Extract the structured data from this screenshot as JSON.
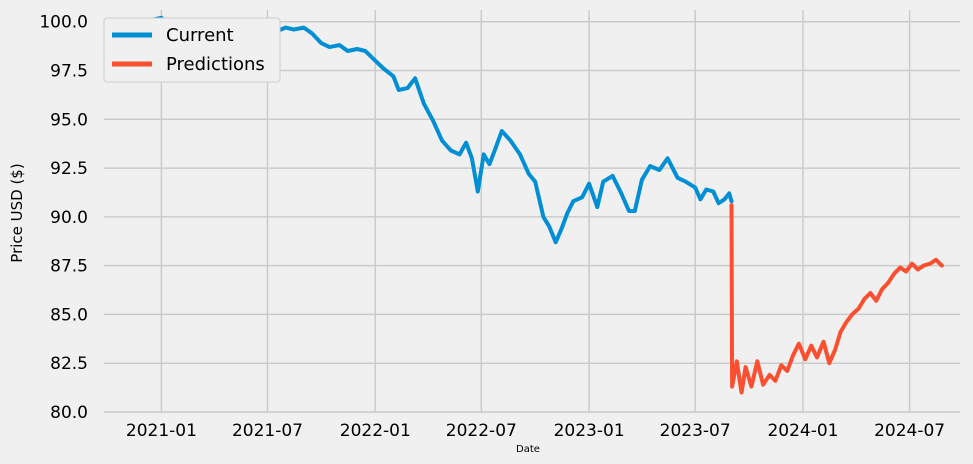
{
  "chart_data": {
    "type": "line",
    "title": "",
    "xlabel": "Date",
    "ylabel": "Price USD ($)",
    "x_type": "date",
    "xlim": [
      "2020-09-25",
      "2024-09-25"
    ],
    "ylim": [
      80.0,
      100.6
    ],
    "x_ticks": [
      "2021-01-01",
      "2021-07-01",
      "2022-01-01",
      "2022-07-01",
      "2023-01-01",
      "2023-07-01",
      "2024-01-01",
      "2024-07-01"
    ],
    "x_tick_labels": [
      "2021-01",
      "2021-07",
      "2022-01",
      "2022-07",
      "2023-01",
      "2023-07",
      "2024-01",
      "2024-07"
    ],
    "y_ticks": [
      80.0,
      82.5,
      85.0,
      87.5,
      90.0,
      92.5,
      95.0,
      97.5,
      100.0
    ],
    "y_tick_labels": [
      "80.0",
      "82.5",
      "85.0",
      "87.5",
      "90.0",
      "92.5",
      "95.0",
      "97.5",
      "100.0"
    ],
    "grid": true,
    "legend_position": "top-left",
    "series": [
      {
        "name": "Current",
        "color": "#008fd5",
        "points": [
          [
            "2020-11-01",
            100.0
          ],
          [
            "2020-11-15",
            99.9
          ],
          [
            "2020-12-01",
            100.0
          ],
          [
            "2020-12-15",
            100.1
          ],
          [
            "2021-01-01",
            100.2
          ],
          [
            "2021-01-15",
            99.7
          ],
          [
            "2021-02-01",
            99.3
          ],
          [
            "2021-02-15",
            99.0
          ],
          [
            "2021-03-01",
            98.8
          ],
          [
            "2021-03-15",
            98.9
          ],
          [
            "2021-04-01",
            99.0
          ],
          [
            "2021-04-15",
            99.1
          ],
          [
            "2021-05-01",
            99.1
          ],
          [
            "2021-06-01",
            99.1
          ],
          [
            "2021-07-01",
            99.1
          ],
          [
            "2021-07-15",
            99.5
          ],
          [
            "2021-08-01",
            99.7
          ],
          [
            "2021-08-15",
            99.6
          ],
          [
            "2021-09-01",
            99.7
          ],
          [
            "2021-09-15",
            99.4
          ],
          [
            "2021-10-01",
            98.9
          ],
          [
            "2021-10-15",
            98.7
          ],
          [
            "2021-11-01",
            98.8
          ],
          [
            "2021-11-15",
            98.5
          ],
          [
            "2021-12-01",
            98.6
          ],
          [
            "2021-12-15",
            98.5
          ],
          [
            "2022-01-01",
            98.0
          ],
          [
            "2022-01-15",
            97.6
          ],
          [
            "2022-02-01",
            97.2
          ],
          [
            "2022-02-10",
            96.5
          ],
          [
            "2022-02-25",
            96.6
          ],
          [
            "2022-03-10",
            97.1
          ],
          [
            "2022-03-25",
            95.8
          ],
          [
            "2022-04-10",
            94.9
          ],
          [
            "2022-04-25",
            93.9
          ],
          [
            "2022-05-10",
            93.4
          ],
          [
            "2022-05-25",
            93.2
          ],
          [
            "2022-06-05",
            93.8
          ],
          [
            "2022-06-15",
            93.0
          ],
          [
            "2022-06-25",
            91.3
          ],
          [
            "2022-07-05",
            93.2
          ],
          [
            "2022-07-15",
            92.7
          ],
          [
            "2022-07-25",
            93.5
          ],
          [
            "2022-08-05",
            94.4
          ],
          [
            "2022-08-20",
            93.9
          ],
          [
            "2022-09-05",
            93.2
          ],
          [
            "2022-09-20",
            92.2
          ],
          [
            "2022-10-01",
            91.8
          ],
          [
            "2022-10-15",
            90.0
          ],
          [
            "2022-10-25",
            89.5
          ],
          [
            "2022-11-05",
            88.7
          ],
          [
            "2022-11-15",
            89.4
          ],
          [
            "2022-11-25",
            90.2
          ],
          [
            "2022-12-05",
            90.8
          ],
          [
            "2022-12-20",
            91.0
          ],
          [
            "2023-01-01",
            91.7
          ],
          [
            "2023-01-15",
            90.5
          ],
          [
            "2023-01-25",
            91.8
          ],
          [
            "2023-02-10",
            92.1
          ],
          [
            "2023-02-25",
            91.2
          ],
          [
            "2023-03-10",
            90.3
          ],
          [
            "2023-03-20",
            90.3
          ],
          [
            "2023-04-01",
            91.9
          ],
          [
            "2023-04-15",
            92.6
          ],
          [
            "2023-05-01",
            92.4
          ],
          [
            "2023-05-15",
            93.0
          ],
          [
            "2023-06-01",
            92.0
          ],
          [
            "2023-06-15",
            91.8
          ],
          [
            "2023-07-01",
            91.5
          ],
          [
            "2023-07-10",
            90.9
          ],
          [
            "2023-07-20",
            91.4
          ],
          [
            "2023-08-01",
            91.3
          ],
          [
            "2023-08-10",
            90.7
          ],
          [
            "2023-08-20",
            90.9
          ],
          [
            "2023-08-28",
            91.2
          ],
          [
            "2023-09-01",
            90.8
          ]
        ]
      },
      {
        "name": "Predictions",
        "color": "#fc4f30",
        "points": [
          [
            "2023-09-01",
            90.6
          ],
          [
            "2023-09-02",
            81.3
          ],
          [
            "2023-09-10",
            82.6
          ],
          [
            "2023-09-18",
            81.0
          ],
          [
            "2023-09-25",
            82.3
          ],
          [
            "2023-10-05",
            81.3
          ],
          [
            "2023-10-15",
            82.6
          ],
          [
            "2023-10-25",
            81.4
          ],
          [
            "2023-11-05",
            81.9
          ],
          [
            "2023-11-15",
            81.6
          ],
          [
            "2023-11-25",
            82.4
          ],
          [
            "2023-12-05",
            82.1
          ],
          [
            "2023-12-15",
            82.9
          ],
          [
            "2023-12-25",
            83.5
          ],
          [
            "2024-01-05",
            82.7
          ],
          [
            "2024-01-15",
            83.4
          ],
          [
            "2024-01-25",
            82.8
          ],
          [
            "2024-02-05",
            83.6
          ],
          [
            "2024-02-15",
            82.5
          ],
          [
            "2024-02-25",
            83.2
          ],
          [
            "2024-03-05",
            84.1
          ],
          [
            "2024-03-15",
            84.6
          ],
          [
            "2024-03-25",
            85.0
          ],
          [
            "2024-04-05",
            85.3
          ],
          [
            "2024-04-15",
            85.8
          ],
          [
            "2024-04-25",
            86.1
          ],
          [
            "2024-05-05",
            85.7
          ],
          [
            "2024-05-15",
            86.3
          ],
          [
            "2024-05-25",
            86.6
          ],
          [
            "2024-06-05",
            87.1
          ],
          [
            "2024-06-15",
            87.4
          ],
          [
            "2024-06-25",
            87.2
          ],
          [
            "2024-07-05",
            87.6
          ],
          [
            "2024-07-15",
            87.3
          ],
          [
            "2024-07-25",
            87.5
          ],
          [
            "2024-08-05",
            87.6
          ],
          [
            "2024-08-15",
            87.8
          ],
          [
            "2024-08-25",
            87.5
          ]
        ]
      }
    ]
  }
}
